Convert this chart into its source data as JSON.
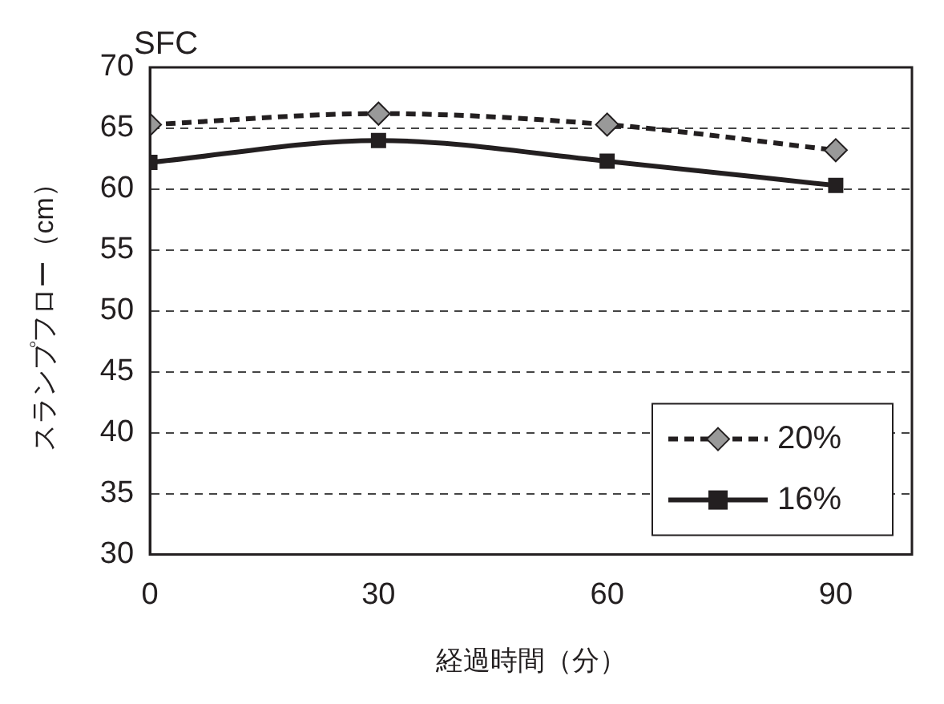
{
  "chart_data": {
    "type": "line",
    "title": "SFC",
    "xlabel": "経過時間（分）",
    "ylabel": "スランプフロー（cm）",
    "x": [
      0,
      30,
      60,
      90
    ],
    "series": [
      {
        "name": "20%",
        "color": "#999999",
        "values": [
          65.3,
          66.2,
          65.3,
          63.2
        ],
        "marker": "diamond",
        "line_style": "dashed"
      },
      {
        "name": "16%",
        "color": "#231f20",
        "values": [
          62.2,
          64.0,
          62.3,
          60.3
        ],
        "marker": "square",
        "line_style": "solid"
      }
    ],
    "xlim": [
      0,
      100
    ],
    "xticks": [
      0,
      30,
      60,
      90
    ],
    "ylim": [
      30,
      70
    ],
    "yticks": [
      30,
      35,
      40,
      45,
      50,
      55,
      60,
      65,
      70
    ],
    "grid": "y",
    "legend": "bottom right"
  }
}
